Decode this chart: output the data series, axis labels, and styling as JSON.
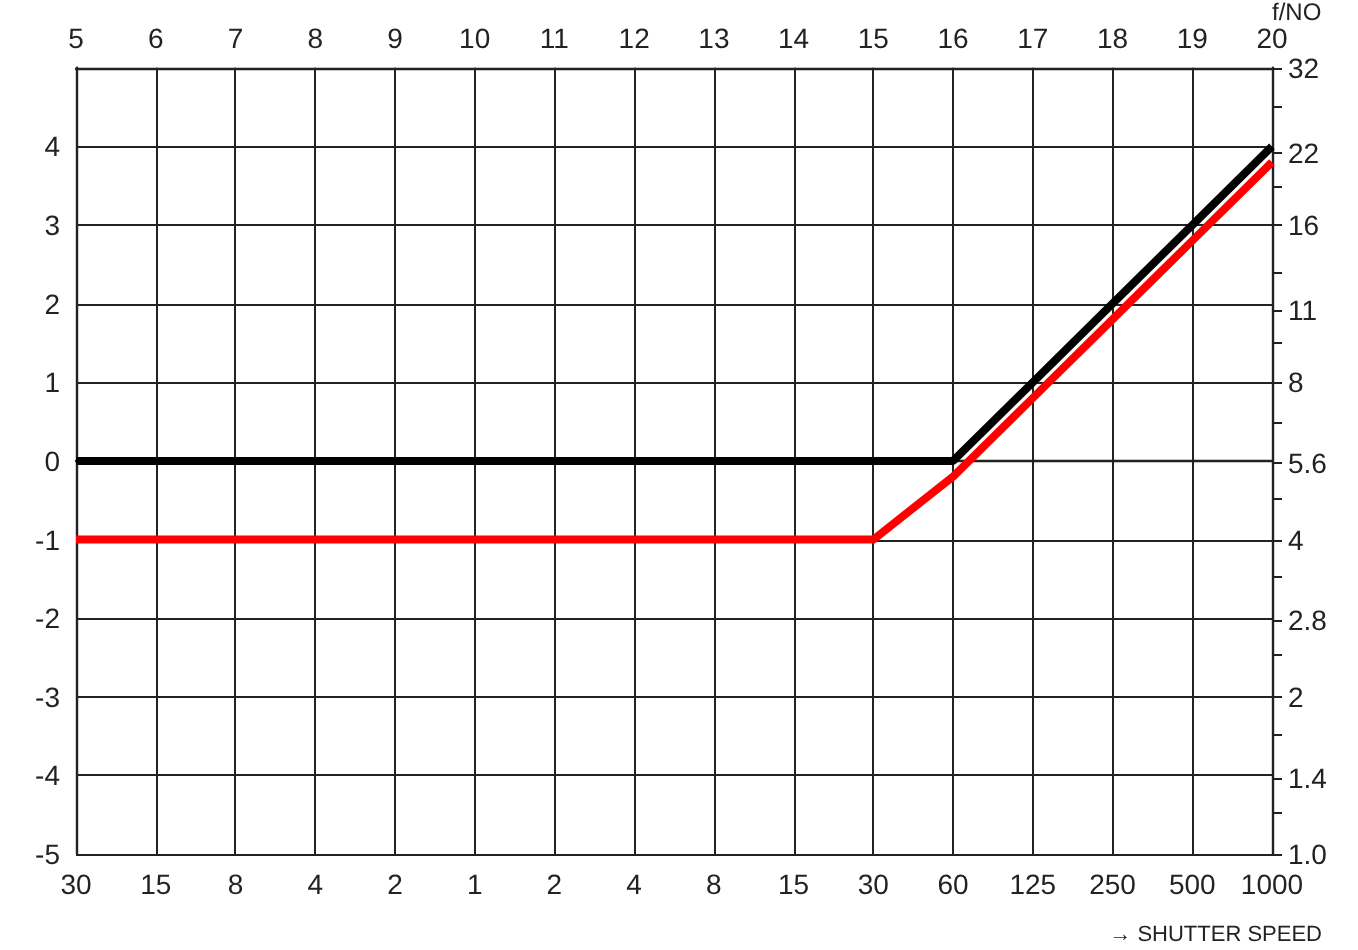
{
  "chart_data": {
    "type": "line",
    "xlabel": "→ SHUTTER SPEED",
    "y2label": "f/NO",
    "categories": [
      "30",
      "15",
      "8",
      "4",
      "2",
      "1",
      "2",
      "4",
      "8",
      "15",
      "30",
      "60",
      "125",
      "250",
      "500",
      "1000"
    ],
    "series": [
      {
        "color": "#000000",
        "values": [
          0,
          0,
          0,
          0,
          0,
          0,
          0,
          0,
          0,
          0,
          0,
          0,
          1,
          2,
          3,
          4
        ]
      },
      {
        "color": "#ff0000",
        "values": [
          -1,
          -1,
          -1,
          -1,
          -1,
          -1,
          -1,
          -1,
          -1,
          -1,
          -1,
          -0.2,
          0.8,
          1.8,
          2.8,
          3.8
        ]
      }
    ],
    "x2lim": [
      5,
      20
    ],
    "x2ticks": [
      5,
      6,
      7,
      8,
      9,
      10,
      11,
      12,
      13,
      14,
      15,
      16,
      17,
      18,
      19,
      20
    ],
    "ylim": [
      -5,
      5
    ],
    "yticks": [
      -5,
      -4,
      -3,
      -2,
      -1,
      0,
      1,
      2,
      3,
      4
    ],
    "log": "y2",
    "y2lim": [
      1,
      32
    ],
    "y2ticks": [
      {
        "value": 1,
        "label": "1.0"
      },
      {
        "value": 1.2,
        "label": null
      },
      1.4,
      {
        "value": 1.7,
        "label": null
      },
      2,
      {
        "value": 2.4,
        "label": null
      },
      2.8,
      {
        "value": 3.4,
        "label": null
      },
      4,
      {
        "value": 4.8,
        "label": null
      },
      5.6,
      {
        "value": 6.7,
        "label": null
      },
      8,
      {
        "value": 9.5,
        "label": null
      },
      11,
      {
        "value": 13,
        "label": null
      },
      16,
      {
        "value": 19,
        "label": null
      },
      22,
      {
        "value": 27,
        "label": null
      },
      32
    ],
    "grid": true,
    "marker": "none"
  }
}
